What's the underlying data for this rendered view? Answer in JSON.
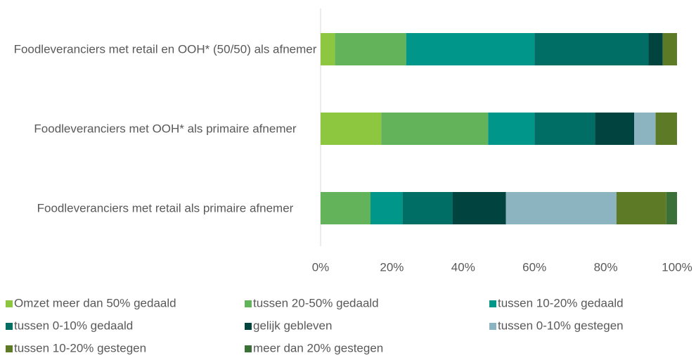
{
  "chart_data": {
    "type": "stacked_barh",
    "categories": [
      "Foodleveranciers met  retail en OOH* (50/50) als afnemer",
      "Foodleveranciers met OOH* als primaire afnemer",
      "Foodleveranciers met retail als primaire afnemer"
    ],
    "series": [
      {
        "name": "Omzet meer dan 50% gedaald",
        "color": "#8dc63f",
        "values": [
          4,
          17,
          0
        ]
      },
      {
        "name": "tussen 20-50% gedaald",
        "color": "#62b359",
        "values": [
          20,
          30,
          14
        ]
      },
      {
        "name": "tussen 10-20% gedaald",
        "color": "#00968a",
        "values": [
          36,
          13,
          9
        ]
      },
      {
        "name": "tussen 0-10% gedaald",
        "color": "#006e64",
        "values": [
          32,
          17,
          14
        ]
      },
      {
        "name": "gelijk gebleven",
        "color": "#00433f",
        "values": [
          4,
          11,
          15
        ]
      },
      {
        "name": "tussen 0-10% gestegen",
        "color": "#8bb3c0",
        "values": [
          0,
          6,
          31
        ]
      },
      {
        "name": "tussen 10-20% gestegen",
        "color": "#5d7b27",
        "values": [
          4,
          6,
          14
        ]
      },
      {
        "name": "meer dan 20% gestegen",
        "color": "#3b7039",
        "values": [
          0,
          0,
          3
        ]
      }
    ],
    "xlim": [
      0,
      100
    ],
    "xticks": [
      {
        "value": 0,
        "label": "0%"
      },
      {
        "value": 20,
        "label": "20%"
      },
      {
        "value": 40,
        "label": "40%"
      },
      {
        "value": 60,
        "label": "60%"
      },
      {
        "value": 80,
        "label": "80%"
      },
      {
        "value": 100,
        "label": "100%"
      }
    ],
    "legend": "bottom"
  }
}
